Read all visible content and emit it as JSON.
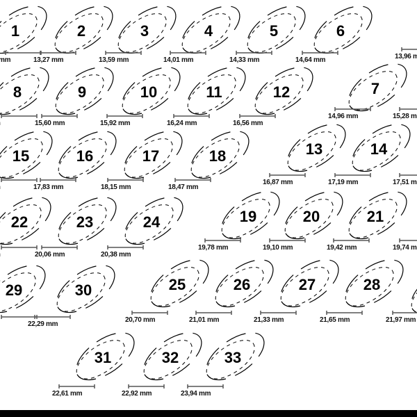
{
  "rings": [
    {
      "size": "1",
      "mm": "mm"
    },
    {
      "size": "2",
      "mm": "13,27 mm"
    },
    {
      "size": "3",
      "mm": "13,59 mm"
    },
    {
      "size": "4",
      "mm": "14,01 mm"
    },
    {
      "size": "5",
      "mm": "14,33 mm"
    },
    {
      "size": "6",
      "mm": "14,64 mm"
    },
    {
      "size": "",
      "mm": "13,96 mm"
    },
    {
      "size": "8",
      "mm": "m"
    },
    {
      "size": "9",
      "mm": "15,60 mm"
    },
    {
      "size": "10",
      "mm": "15,92 mm"
    },
    {
      "size": "11",
      "mm": "16,24 mm"
    },
    {
      "size": "12",
      "mm": "16,56 mm"
    },
    {
      "size": "7",
      "mm": "14,96 mm"
    },
    {
      "size": "",
      "mm": "15,28 mm"
    },
    {
      "size": "15",
      "mm": "m"
    },
    {
      "size": "16",
      "mm": "17,83 mm"
    },
    {
      "size": "17",
      "mm": "18,15 mm"
    },
    {
      "size": "18",
      "mm": "18,47 mm"
    },
    {
      "size": "13",
      "mm": "16,87 mm"
    },
    {
      "size": "14",
      "mm": "17,19 mm"
    },
    {
      "size": "",
      "mm": "17,51 mm"
    },
    {
      "size": "22",
      "mm": "m"
    },
    {
      "size": "23",
      "mm": "20,06 mm"
    },
    {
      "size": "24",
      "mm": "20,38 mm"
    },
    {
      "size": "19",
      "mm": "19,78 mm"
    },
    {
      "size": "20",
      "mm": "19,10 mm"
    },
    {
      "size": "21",
      "mm": "19,42 mm"
    },
    {
      "size": "",
      "mm": "19,74 mm"
    },
    {
      "size": "29",
      "mm": ""
    },
    {
      "size": "30",
      "mm": "22,29 mm"
    },
    {
      "size": "25",
      "mm": "20,70 mm"
    },
    {
      "size": "26",
      "mm": "21,01 mm"
    },
    {
      "size": "27",
      "mm": "21,33 mm"
    },
    {
      "size": "28",
      "mm": "21,65 mm"
    },
    {
      "size": "",
      "mm": "21,97 mm"
    },
    {
      "size": "31",
      "mm": "22,61 mm"
    },
    {
      "size": "32",
      "mm": "22,92 mm"
    },
    {
      "size": "33",
      "mm": "23,94 mm"
    }
  ],
  "colors": {
    "ink": "#000000",
    "background": "#ffffff",
    "scale_bar": "#555555"
  }
}
